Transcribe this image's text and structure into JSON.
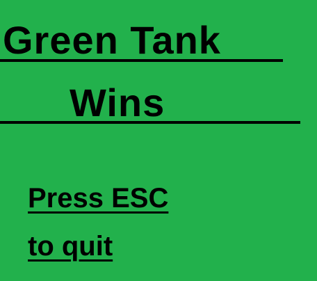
{
  "screen": {
    "background_color": "#22b14c",
    "text_color": "#000000"
  },
  "winner_message": {
    "line1": "Green Tank",
    "line2": "Wins"
  },
  "prompt": {
    "line1": "Press ESC",
    "line2": "to quit"
  }
}
